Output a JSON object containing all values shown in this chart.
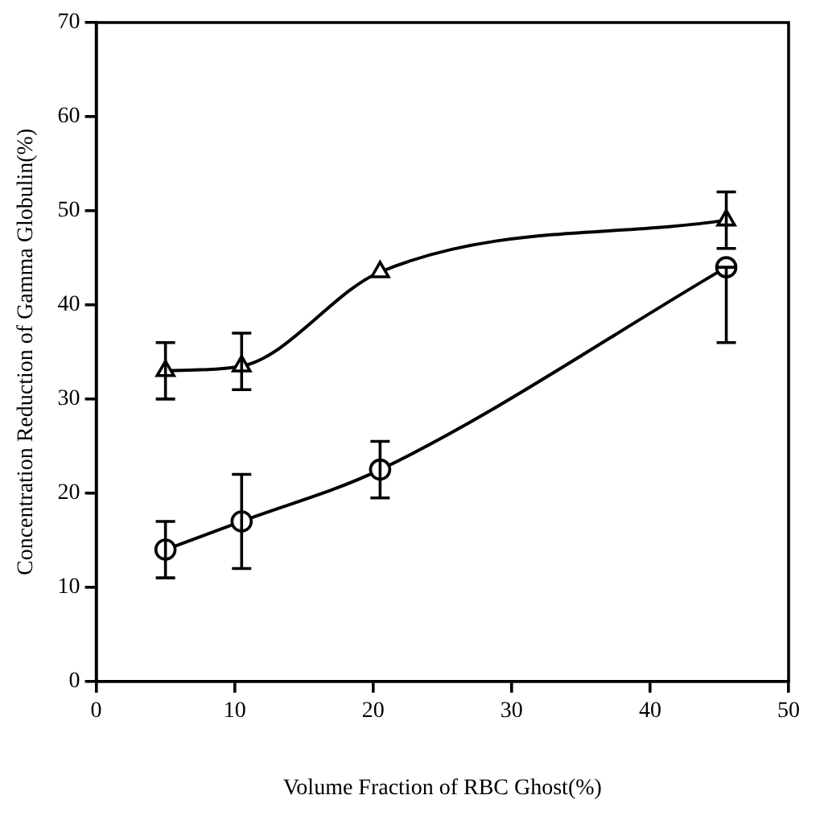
{
  "chart_data": {
    "type": "line",
    "xlabel": "Volume Fraction of RBC Ghost(%)",
    "ylabel": "Concentration Reduction of Gamma Globulin(%)",
    "xlim": [
      0,
      50
    ],
    "xticks": [
      0,
      10,
      20,
      30,
      40,
      50
    ],
    "ylim": [
      0,
      70
    ],
    "yticks": [
      0,
      10,
      20,
      30,
      40,
      50,
      60,
      70
    ],
    "grid": false,
    "legend": false,
    "line_style": "solid",
    "series": [
      {
        "color": "#000000",
        "marker": "triangle",
        "x": [
          5,
          10.5,
          20.5,
          45.5
        ],
        "values": [
          33,
          33.5,
          43.5,
          49
        ],
        "errors": [
          [
            30,
            36
          ],
          [
            31,
            37
          ],
          null,
          [
            46,
            52
          ]
        ]
      },
      {
        "color": "#000000",
        "marker": "circle",
        "x": [
          5,
          10.5,
          20.5,
          45.5
        ],
        "values": [
          14,
          17,
          22.5,
          44
        ],
        "errors": [
          [
            11,
            17
          ],
          [
            12,
            22
          ],
          [
            19.5,
            25.5
          ],
          [
            36,
            44
          ]
        ]
      }
    ]
  }
}
